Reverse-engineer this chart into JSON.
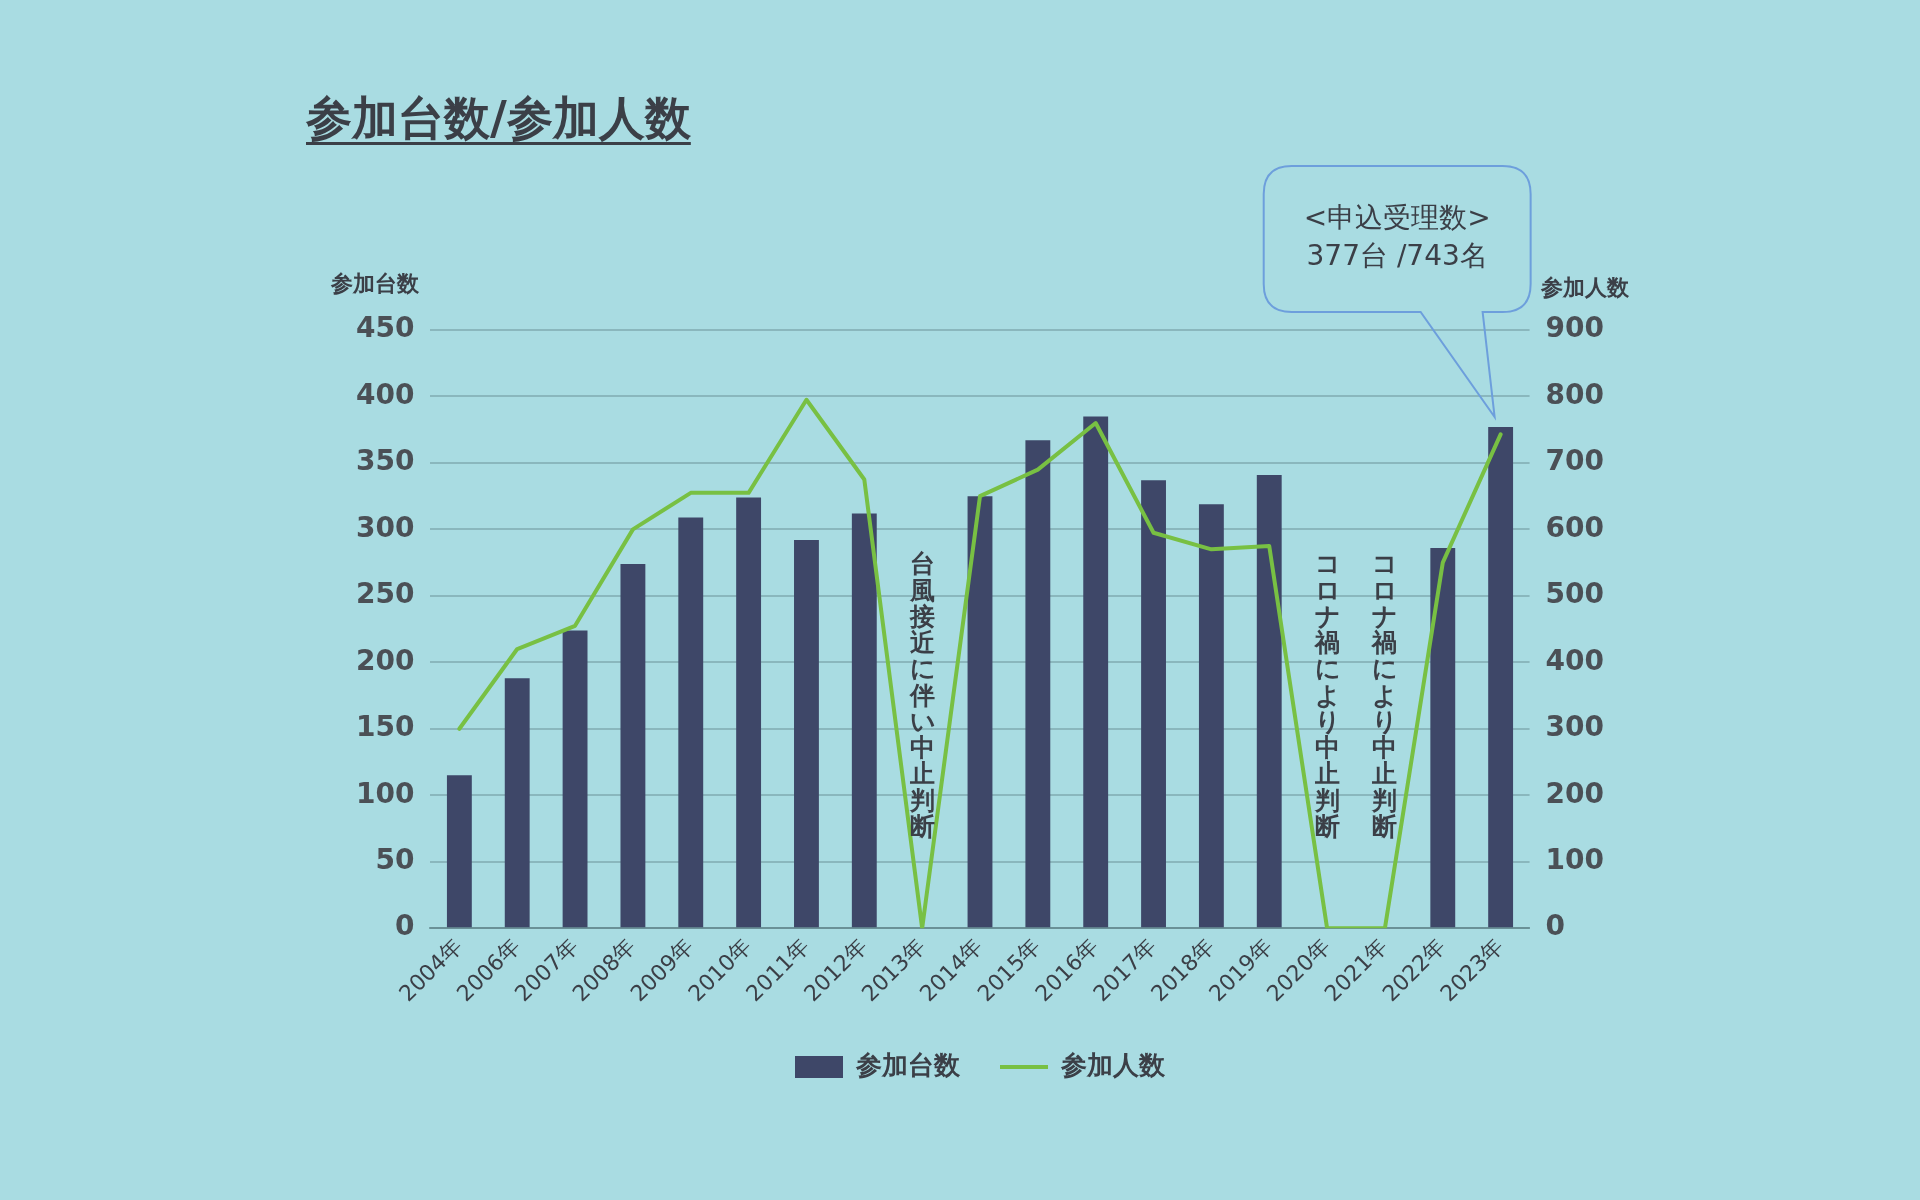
{
  "chart_data": {
    "type": "bar",
    "title": "参加台数/参加人数",
    "ylabel": "参加台数",
    "y2label": "参加人数",
    "categories": [
      "2004年",
      "2006年",
      "2007年",
      "2008年",
      "2009年",
      "2010年",
      "2011年",
      "2012年",
      "2013年",
      "2014年",
      "2015年",
      "2016年",
      "2017年",
      "2018年",
      "2019年",
      "2020年",
      "2021年",
      "2022年",
      "2023年"
    ],
    "series": [
      {
        "name": "参加台数",
        "color": "#3e4768",
        "values": [
          115,
          188,
          224,
          274,
          309,
          324,
          292,
          312,
          null,
          325,
          367,
          385,
          337,
          319,
          341,
          null,
          null,
          286,
          377
        ]
      },
      {
        "name": "参加人数",
        "type": "line",
        "axis": "y2",
        "color": "#78c043",
        "values": [
          300,
          420,
          455,
          600,
          655,
          655,
          795,
          675,
          0,
          650,
          690,
          760,
          595,
          570,
          575,
          0,
          0,
          550,
          743
        ]
      }
    ],
    "ylim": [
      0,
      450
    ],
    "yticks": [
      0,
      50,
      100,
      150,
      200,
      250,
      300,
      350,
      400,
      450
    ],
    "y2lim": [
      0,
      900
    ],
    "y2ticks": [
      0,
      100,
      200,
      300,
      400,
      500,
      600,
      700,
      800,
      900
    ],
    "grid": "y",
    "legend": "bottom",
    "annotations": [
      "台風接近に伴い中止判断",
      "コロナ禍により中止判断",
      "コロナ禍により中止判断",
      "<申込受理数>\n377台 /743名"
    ]
  }
}
